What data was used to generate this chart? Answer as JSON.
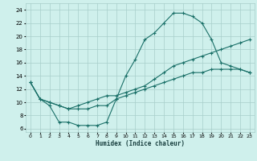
{
  "xlabel": "Humidex (Indice chaleur)",
  "bg_color": "#cff0ec",
  "grid_color": "#a8ceca",
  "line_color": "#1a7068",
  "xlim": [
    -0.5,
    23.5
  ],
  "ylim": [
    5.5,
    25.0
  ],
  "xticks": [
    0,
    1,
    2,
    3,
    4,
    5,
    6,
    7,
    8,
    9,
    10,
    11,
    12,
    13,
    14,
    15,
    16,
    17,
    18,
    19,
    20,
    21,
    22,
    23
  ],
  "yticks": [
    6,
    8,
    10,
    12,
    14,
    16,
    18,
    20,
    22,
    24
  ],
  "line1_x": [
    0,
    1,
    2,
    3,
    4,
    5,
    6,
    7,
    8,
    9,
    10,
    11,
    12,
    13,
    14,
    15,
    16,
    17,
    18,
    19,
    20,
    21,
    22,
    23
  ],
  "line1_y": [
    13,
    10.5,
    9.5,
    7.0,
    7.0,
    6.5,
    6.5,
    6.5,
    7.0,
    10.5,
    14.0,
    16.5,
    19.5,
    20.5,
    22.0,
    23.5,
    23.5,
    23.0,
    22.0,
    19.5,
    16.0,
    15.5,
    15.0,
    14.5
  ],
  "line2_x": [
    0,
    1,
    2,
    3,
    4,
    5,
    6,
    7,
    8,
    9,
    10,
    11,
    12,
    13,
    14,
    15,
    16,
    17,
    18,
    19,
    20,
    21,
    22,
    23
  ],
  "line2_y": [
    13,
    10.5,
    10.0,
    9.5,
    9.0,
    9.0,
    9.0,
    9.5,
    9.5,
    10.5,
    11.0,
    11.5,
    12.0,
    12.5,
    13.0,
    13.5,
    14.0,
    14.5,
    14.5,
    15.0,
    15.0,
    15.0,
    15.0,
    14.5
  ],
  "line3_x": [
    0,
    1,
    2,
    3,
    4,
    5,
    6,
    7,
    8,
    9,
    10,
    11,
    12,
    13,
    14,
    15,
    16,
    17,
    18,
    19,
    20,
    21,
    22,
    23
  ],
  "line3_y": [
    13,
    10.5,
    10.0,
    9.5,
    9.0,
    9.5,
    10.0,
    10.5,
    11.0,
    11.0,
    11.5,
    12.0,
    12.5,
    13.5,
    14.5,
    15.5,
    16.0,
    16.5,
    17.0,
    17.5,
    18.0,
    18.5,
    19.0,
    19.5
  ]
}
